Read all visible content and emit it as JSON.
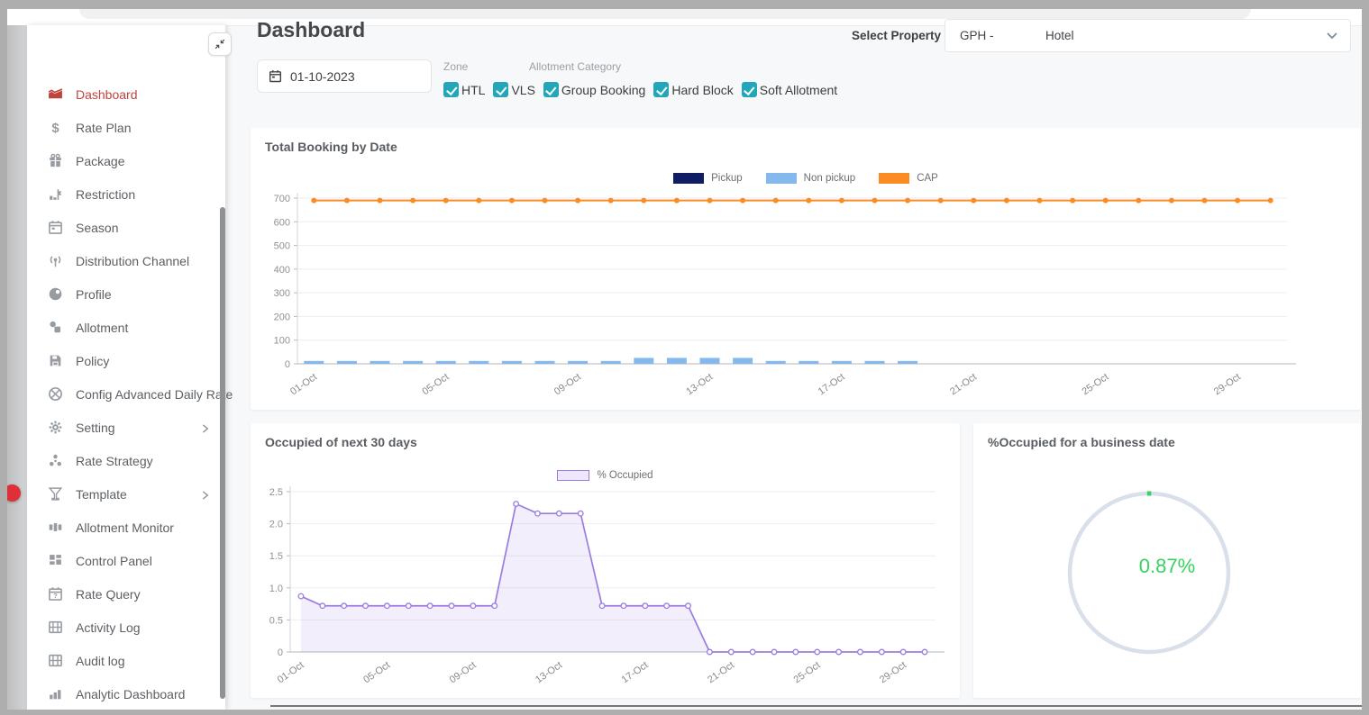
{
  "sidebar": {
    "items": [
      {
        "label": "Dashboard",
        "icon": "dashboard-icon",
        "active": true,
        "has_submenu": false
      },
      {
        "label": "Rate Plan",
        "icon": "rate-plan-icon",
        "active": false,
        "has_submenu": false
      },
      {
        "label": "Package",
        "icon": "package-icon",
        "active": false,
        "has_submenu": false
      },
      {
        "label": "Restriction",
        "icon": "restriction-icon",
        "active": false,
        "has_submenu": false
      },
      {
        "label": "Season",
        "icon": "season-icon",
        "active": false,
        "has_submenu": false
      },
      {
        "label": "Distribution Channel",
        "icon": "distribution-channel-icon",
        "active": false,
        "has_submenu": false
      },
      {
        "label": "Profile",
        "icon": "profile-icon",
        "active": false,
        "has_submenu": false
      },
      {
        "label": "Allotment",
        "icon": "allotment-icon",
        "active": false,
        "has_submenu": false
      },
      {
        "label": "Policy",
        "icon": "policy-icon",
        "active": false,
        "has_submenu": false
      },
      {
        "label": "Config Advanced Daily Rate",
        "icon": "config-advanced-daily-rate-icon",
        "active": false,
        "has_submenu": false
      },
      {
        "label": "Setting",
        "icon": "setting-icon",
        "active": false,
        "has_submenu": true
      },
      {
        "label": "Rate Strategy",
        "icon": "rate-strategy-icon",
        "active": false,
        "has_submenu": false
      },
      {
        "label": "Template",
        "icon": "template-icon",
        "active": false,
        "has_submenu": true
      },
      {
        "label": "Allotment Monitor",
        "icon": "allotment-monitor-icon",
        "active": false,
        "has_submenu": false
      },
      {
        "label": "Control Panel",
        "icon": "control-panel-icon",
        "active": false,
        "has_submenu": false
      },
      {
        "label": "Rate Query",
        "icon": "rate-query-icon",
        "active": false,
        "has_submenu": false
      },
      {
        "label": "Activity Log",
        "icon": "activity-log-icon",
        "active": false,
        "has_submenu": false
      },
      {
        "label": "Audit log",
        "icon": "audit-log-icon",
        "active": false,
        "has_submenu": false
      },
      {
        "label": "Analytic Dashboard",
        "icon": "analytic-dashboard-icon",
        "active": false,
        "has_submenu": false
      }
    ]
  },
  "header": {
    "title": "Dashboard",
    "select_property_label": "Select Property",
    "property_code": "GPH -",
    "property_name": "Hotel"
  },
  "filters": {
    "date_value": "01-10-2023",
    "zone_label": "Zone",
    "allotment_category_label": "Allotment Category",
    "checkboxes": [
      {
        "label": "HTL",
        "checked": true
      },
      {
        "label": "VLS",
        "checked": true
      },
      {
        "label": "Group Booking",
        "checked": true
      },
      {
        "label": "Hard Block",
        "checked": true
      },
      {
        "label": "Soft Allotment",
        "checked": true
      }
    ]
  },
  "colors": {
    "accent_teal": "#23a6ba",
    "active_red": "#c0443e",
    "pickup_navy": "#101d63",
    "non_pickup_blue": "#85b9ee",
    "cap_orange": "#fb8b25",
    "occupied_purple": "#9d7ce2",
    "donut_green": "#35d35f",
    "donut_track": "#d9e0ea"
  },
  "chart_data": [
    {
      "type": "bar",
      "title": "Total Booking by Date",
      "x": [
        "01-Oct",
        "02-Oct",
        "03-Oct",
        "04-Oct",
        "05-Oct",
        "06-Oct",
        "07-Oct",
        "08-Oct",
        "09-Oct",
        "10-Oct",
        "11-Oct",
        "12-Oct",
        "13-Oct",
        "14-Oct",
        "15-Oct",
        "16-Oct",
        "17-Oct",
        "18-Oct",
        "19-Oct",
        "20-Oct",
        "21-Oct",
        "22-Oct",
        "23-Oct",
        "24-Oct",
        "25-Oct",
        "26-Oct",
        "27-Oct",
        "28-Oct",
        "29-Oct",
        "30-Oct"
      ],
      "x_tick_every": 4,
      "x_tick_labels": [
        "01-Oct",
        "05-Oct",
        "09-Oct",
        "13-Oct",
        "17-Oct",
        "21-Oct",
        "25-Oct",
        "29-Oct"
      ],
      "ylim": [
        0,
        700
      ],
      "yticks": [
        "0",
        "100",
        "200",
        "300",
        "400",
        "500",
        "600",
        "700"
      ],
      "grid": true,
      "legend_position": "top-center",
      "series": [
        {
          "name": "Pickup",
          "type": "bar",
          "color": "#101d63",
          "values": [
            0,
            0,
            0,
            0,
            0,
            0,
            0,
            0,
            0,
            0,
            0,
            0,
            0,
            0,
            0,
            0,
            0,
            0,
            0,
            0,
            0,
            0,
            0,
            0,
            0,
            0,
            0,
            0,
            0,
            0
          ]
        },
        {
          "name": "Non pickup",
          "type": "bar",
          "color": "#85b9ee",
          "values": [
            12,
            12,
            12,
            12,
            12,
            12,
            12,
            12,
            12,
            12,
            25,
            25,
            25,
            25,
            12,
            12,
            12,
            12,
            12,
            0,
            0,
            0,
            0,
            0,
            0,
            0,
            0,
            0,
            0,
            0
          ]
        },
        {
          "name": "CAP",
          "type": "line",
          "color": "#fb8b25",
          "values": [
            690,
            690,
            690,
            690,
            690,
            690,
            690,
            690,
            690,
            690,
            690,
            690,
            690,
            690,
            690,
            690,
            690,
            690,
            690,
            690,
            690,
            690,
            690,
            690,
            690,
            690,
            690,
            690,
            690,
            690
          ]
        }
      ]
    },
    {
      "type": "area",
      "title": "Occupied of next 30 days",
      "x": [
        "01-Oct",
        "02-Oct",
        "03-Oct",
        "04-Oct",
        "05-Oct",
        "06-Oct",
        "07-Oct",
        "08-Oct",
        "09-Oct",
        "10-Oct",
        "11-Oct",
        "12-Oct",
        "13-Oct",
        "14-Oct",
        "15-Oct",
        "16-Oct",
        "17-Oct",
        "18-Oct",
        "19-Oct",
        "20-Oct",
        "21-Oct",
        "22-Oct",
        "23-Oct",
        "24-Oct",
        "25-Oct",
        "26-Oct",
        "27-Oct",
        "28-Oct",
        "29-Oct",
        "30-Oct"
      ],
      "x_tick_every": 4,
      "x_tick_labels": [
        "01-Oct",
        "05-Oct",
        "09-Oct",
        "13-Oct",
        "17-Oct",
        "21-Oct",
        "25-Oct",
        "29-Oct"
      ],
      "ylim": [
        0,
        2.5
      ],
      "yticks": [
        "0",
        "0.5",
        "1.0",
        "1.5",
        "2.0",
        "2.5"
      ],
      "grid": true,
      "legend_position": "top-center",
      "series": [
        {
          "name": "% Occupied",
          "type": "area",
          "color": "#9d7ce2",
          "values": [
            0.87,
            0.72,
            0.72,
            0.72,
            0.72,
            0.72,
            0.72,
            0.72,
            0.72,
            0.72,
            2.31,
            2.16,
            2.16,
            2.16,
            0.72,
            0.72,
            0.72,
            0.72,
            0.72,
            0,
            0,
            0,
            0,
            0,
            0,
            0,
            0,
            0,
            0,
            0
          ]
        }
      ]
    },
    {
      "type": "donut",
      "title": "%Occupied for a business date",
      "value_percent": 0.87,
      "center_label": "0.87%",
      "value_color": "#35d35f",
      "track_color": "#d9e0ea"
    }
  ]
}
